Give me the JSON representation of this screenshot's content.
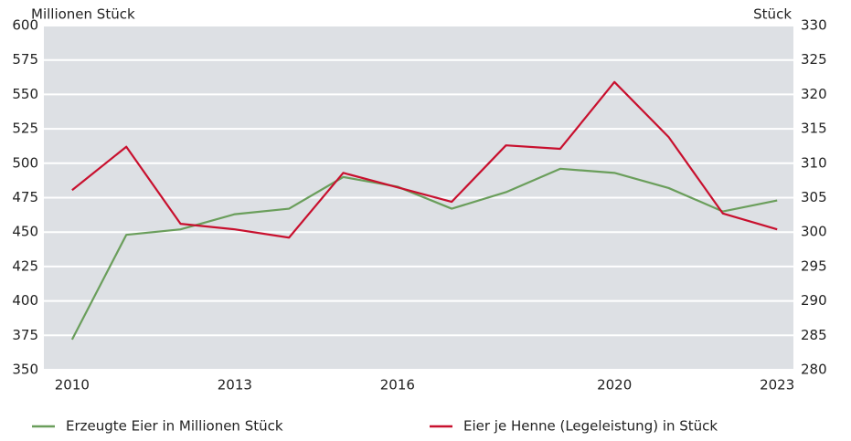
{
  "chart_data": {
    "type": "line",
    "y_label": "Millionen Stück",
    "y2_label": "Stück",
    "x": [
      2010,
      2011,
      2012,
      2013,
      2014,
      2015,
      2016,
      2017,
      2018,
      2019,
      2020,
      2021,
      2022,
      2023
    ],
    "xlim": [
      2009.48,
      2023.3
    ],
    "xticks": [
      2010,
      2013,
      2016,
      2020,
      2023
    ],
    "ylim": [
      350,
      600
    ],
    "yticks": [
      350,
      375,
      400,
      425,
      450,
      475,
      500,
      525,
      550,
      575,
      600
    ],
    "y2lim": [
      280,
      330
    ],
    "y2ticks": [
      280,
      285,
      290,
      295,
      300,
      305,
      310,
      315,
      320,
      325,
      330
    ],
    "grid": true,
    "series": [
      {
        "name": "Erzeugte Eier in Millionen Stück",
        "color": "#6a9e5b",
        "values": [
          372,
          448,
          452,
          463,
          467,
          490,
          483,
          467,
          479,
          496,
          493,
          482,
          465,
          473
        ]
      },
      {
        "name": "Eier je Henne (Legeleistung) in Stück",
        "color": "#c8102e",
        "axis": "y2",
        "values": [
          306.1,
          312.4,
          301.2,
          300.4,
          299.2,
          308.6,
          306.5,
          304.4,
          312.6,
          312.1,
          321.8,
          313.8,
          302.7,
          300.4
        ]
      }
    ]
  }
}
